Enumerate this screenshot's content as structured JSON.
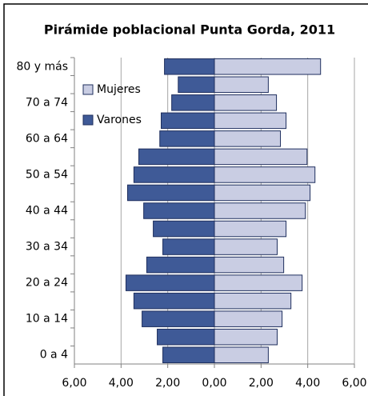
{
  "chart_data": {
    "type": "pyramid",
    "title": "Pirámide poblacional Punta Gorda, 2011",
    "categories": [
      "80 y más",
      null,
      "70 a 74",
      null,
      "60 a 64",
      null,
      "50 a 54",
      null,
      "40 a 44",
      null,
      "30 a 34",
      null,
      "20 a 24",
      null,
      "10 a 14",
      null,
      "0 a 4"
    ],
    "series": [
      {
        "name": "Mujeres",
        "color": "#c9cde3",
        "values": [
          4.55,
          2.31,
          2.66,
          3.07,
          2.83,
          3.97,
          4.31,
          4.1,
          3.9,
          3.07,
          2.69,
          2.97,
          3.76,
          3.28,
          2.9,
          2.69,
          2.31
        ]
      },
      {
        "name": "Varones",
        "color": "#3f5a97",
        "values": [
          -2.14,
          -1.55,
          -1.83,
          -2.28,
          -2.34,
          -3.24,
          -3.45,
          -3.72,
          -3.03,
          -2.62,
          -2.21,
          -2.9,
          -3.79,
          -3.45,
          -3.1,
          -2.45,
          -2.21
        ]
      }
    ],
    "xlim": [
      -6,
      6
    ],
    "xticks": [
      {
        "value": -6,
        "label": "6,00"
      },
      {
        "value": -4,
        "label": "4,00"
      },
      {
        "value": -2,
        "label": "2,00"
      },
      {
        "value": 0,
        "label": "0,00"
      },
      {
        "value": 2,
        "label": "2,00"
      },
      {
        "value": 4,
        "label": "4,00"
      },
      {
        "value": 6,
        "label": "6,00"
      }
    ],
    "grid": true,
    "legend": "upper left"
  }
}
